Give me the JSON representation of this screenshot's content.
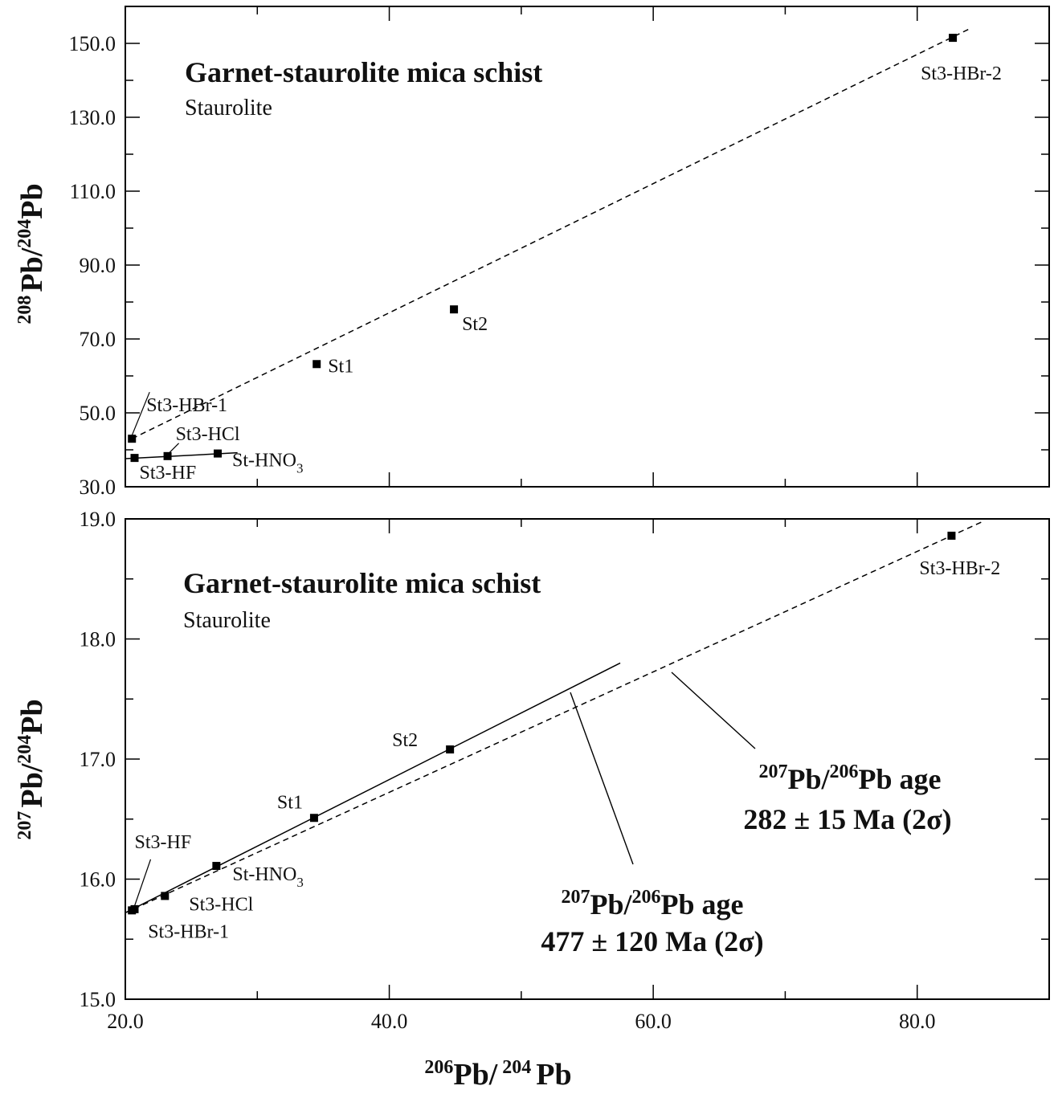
{
  "chart_data": [
    {
      "type": "scatter",
      "title": "Garnet-staurolite mica schist",
      "subtitle": "Staurolite",
      "xlabel": "206Pb/ 204 Pb",
      "ylabel": "208Pb/204Pb",
      "xlim": [
        20.0,
        90.0
      ],
      "ylim": [
        30.0,
        160.0
      ],
      "xticks": [
        20.0,
        40.0,
        60.0,
        80.0
      ],
      "xtick_labels": [],
      "yticks": [
        30.0,
        50.0,
        70.0,
        90.0,
        110.0,
        130.0,
        150.0
      ],
      "ytick_labels": [
        "30.0",
        "50.0",
        "70.0",
        "90.0",
        "110.0",
        "130.0",
        "150.0"
      ],
      "points": [
        {
          "label": "St3-HBr-1",
          "x": 20.5,
          "y": 43.0
        },
        {
          "label": "St3-HF",
          "x": 20.7,
          "y": 37.8
        },
        {
          "label": "St3-HCl",
          "x": 23.2,
          "y": 38.3
        },
        {
          "label": "St-HNO",
          "label_sub": "3",
          "x": 27.0,
          "y": 39.0
        },
        {
          "label": "St1",
          "x": 34.5,
          "y": 63.2
        },
        {
          "label": "St2",
          "x": 44.9,
          "y": 78.0
        },
        {
          "label": "St3-HBr-2",
          "x": 82.7,
          "y": 151.5
        }
      ],
      "lines": [
        {
          "style": "dashed",
          "x": [
            20.5,
            84.0
          ],
          "y": [
            43.0,
            154.0
          ]
        },
        {
          "style": "solid",
          "x": [
            20.0,
            28.5
          ],
          "y": [
            37.6,
            39.2
          ]
        }
      ]
    },
    {
      "type": "scatter",
      "title": "Garnet-staurolite mica schist",
      "subtitle": "Staurolite",
      "xlabel": "206Pb/ 204 Pb",
      "ylabel": "207Pb/204Pb",
      "xlim": [
        20.0,
        90.0
      ],
      "ylim": [
        15.0,
        19.0
      ],
      "xticks": [
        20.0,
        40.0,
        60.0,
        80.0
      ],
      "xtick_labels": [
        "20.0",
        "40.0",
        "60.0",
        "80.0"
      ],
      "yticks": [
        15.0,
        16.0,
        17.0,
        18.0,
        19.0
      ],
      "ytick_labels": [
        "15.0",
        "16.0",
        "17.0",
        "18.0",
        "19.0"
      ],
      "points": [
        {
          "label": "St3-HBr-1",
          "x": 20.5,
          "y": 15.74
        },
        {
          "label": "St3-HF",
          "x": 20.7,
          "y": 15.75
        },
        {
          "label": "St3-HCl",
          "x": 23.0,
          "y": 15.86
        },
        {
          "label": "St-HNO",
          "label_sub": "3",
          "x": 26.9,
          "y": 16.11
        },
        {
          "label": "St1",
          "x": 34.3,
          "y": 16.51
        },
        {
          "label": "St2",
          "x": 44.6,
          "y": 17.08
        },
        {
          "label": "St3-HBr-2",
          "x": 82.6,
          "y": 18.86
        }
      ],
      "lines": [
        {
          "style": "solid",
          "x": [
            20.0,
            57.5
          ],
          "y": [
            15.72,
            17.8
          ]
        },
        {
          "style": "dashed",
          "x": [
            20.0,
            85.0
          ],
          "y": [
            15.72,
            18.98
          ]
        }
      ],
      "annotations": [
        {
          "sup1": "207",
          "mid": "Pb/",
          "sup2": "206",
          "end": "Pb age",
          "line2": "282 ± 15 Ma (2σ)"
        },
        {
          "sup1": "207",
          "mid": "Pb/",
          "sup2": "206",
          "end": "Pb age",
          "line2": "477 ± 120 Ma (2σ)"
        }
      ]
    }
  ],
  "x_axis": {
    "sup1": "206",
    "mid": "Pb/",
    "sup2": "204",
    "end": "Pb"
  },
  "top_y_axis": {
    "sup1": "208",
    "mid": "Pb/",
    "sup2": "204",
    "end": "Pb"
  },
  "bottom_y_axis": {
    "sup1": "207",
    "mid": "Pb/",
    "sup2": "204",
    "end": "Pb"
  }
}
